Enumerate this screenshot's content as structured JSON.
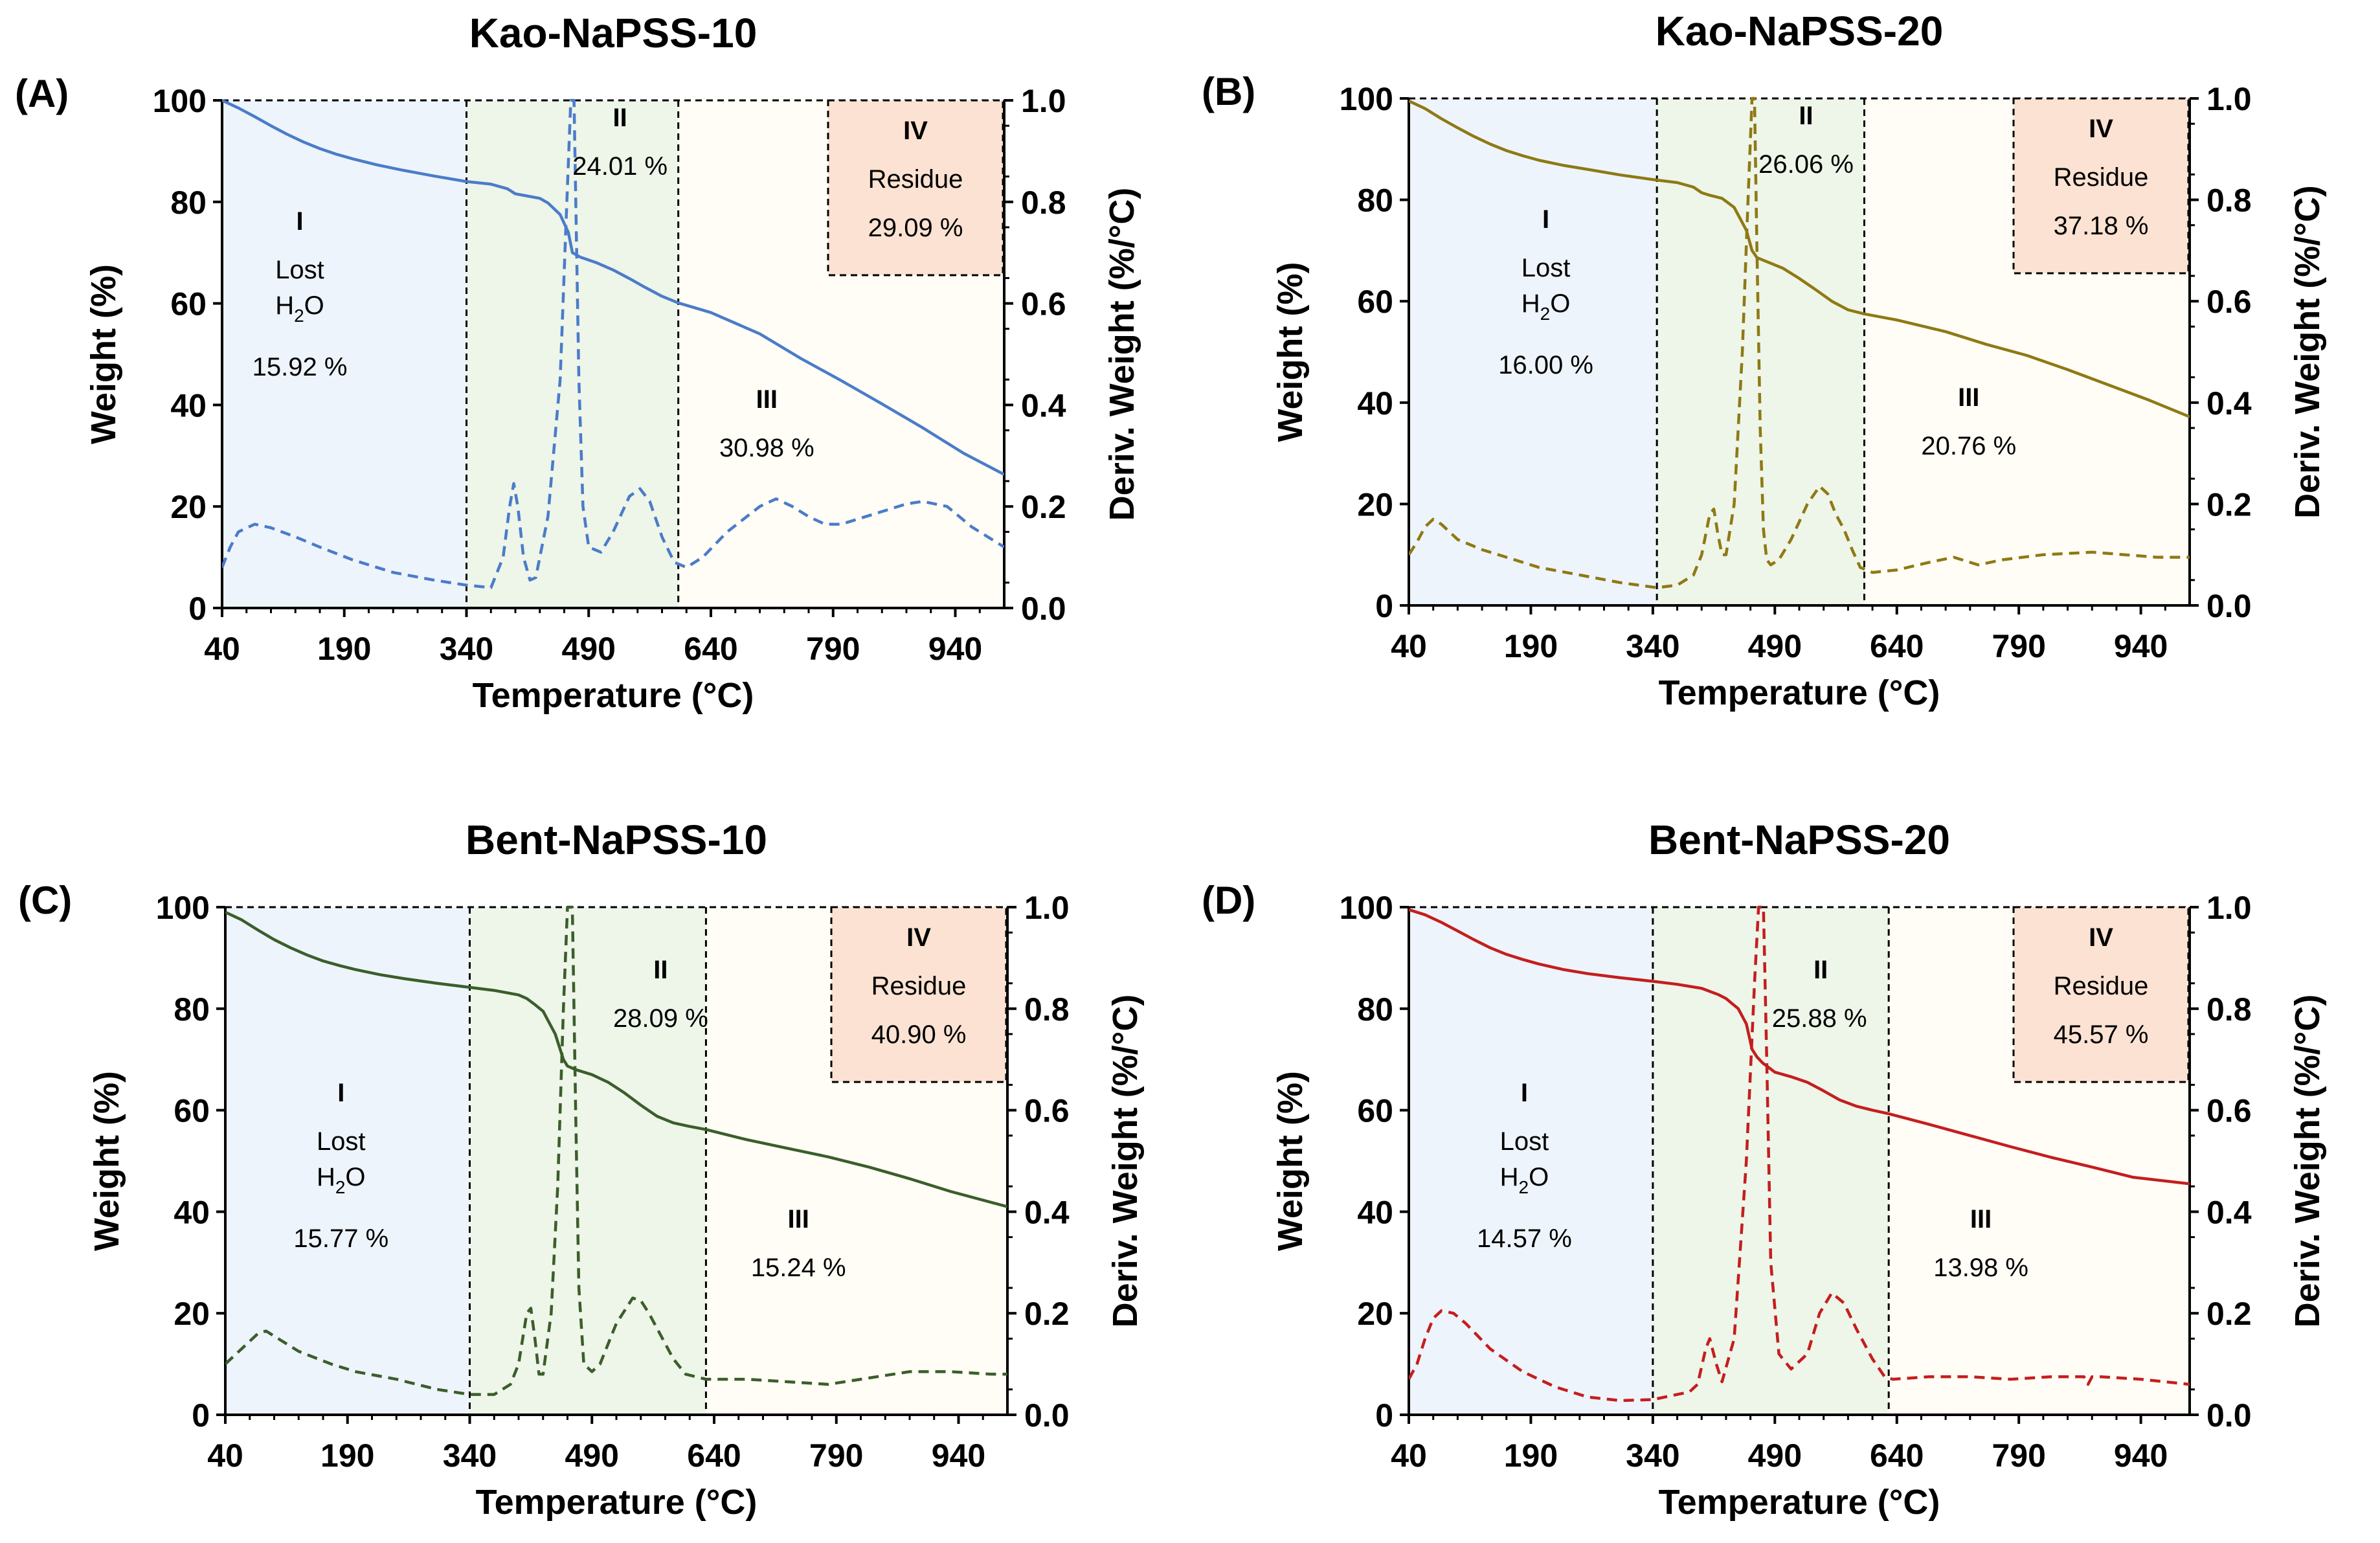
{
  "figure": {
    "x_axis_label": "Temperature (°C)",
    "y_left_label": "Weight (%)",
    "y_right_label": "Deriv. Weight (%/°C)",
    "x_ticks": [
      "40",
      "190",
      "340",
      "490",
      "640",
      "790",
      "940"
    ],
    "y_left_ticks": [
      "0",
      "20",
      "40",
      "60",
      "80",
      "100"
    ],
    "y_right_ticks": [
      "0.0",
      "0.2",
      "0.4",
      "0.6",
      "0.8",
      "1.0"
    ],
    "region_colors": {
      "I": "#eef4fb",
      "II": "#eef5e9",
      "III": "#fffdf6",
      "IV": "#fbe2d2"
    }
  },
  "chart_data": [
    {
      "panel": "(A)",
      "title": "Kao-NaPSS-10",
      "type": "line",
      "color": "#4a7cc9",
      "xlim": [
        40,
        1000
      ],
      "ylim": [
        0,
        100
      ],
      "y2lim": [
        0,
        1
      ],
      "boundaries": [
        340,
        600
      ],
      "regions": {
        "I": {
          "roman": "I",
          "line1": "Lost",
          "h2o": "H",
          "h2o_sub": "2",
          "h2o_tail": "O",
          "value": "15.92 %"
        },
        "II": {
          "roman": "II",
          "value": "24.01 %"
        },
        "III": {
          "roman": "III",
          "value": "30.98 %"
        },
        "IV": {
          "roman": "IV",
          "line1": "Residue",
          "value": "29.09 %"
        }
      },
      "series": [
        {
          "name": "Weight (%)",
          "axis": "left",
          "style": "solid",
          "x": [
            40,
            60,
            80,
            100,
            120,
            140,
            160,
            180,
            200,
            230,
            260,
            300,
            340,
            370,
            390,
            400,
            410,
            430,
            440,
            455,
            465,
            470,
            480,
            500,
            520,
            540,
            560,
            580,
            600,
            640,
            700,
            750,
            800,
            850,
            900,
            950,
            1000
          ],
          "y": [
            100,
            98.5,
            96.8,
            95,
            93.3,
            91.8,
            90.5,
            89.4,
            88.5,
            87.3,
            86.3,
            85.1,
            84,
            83.5,
            82.6,
            81.6,
            81.3,
            80.7,
            79.8,
            77.5,
            74,
            70,
            69.1,
            68,
            66.6,
            64.9,
            63.1,
            61.4,
            60.1,
            58.2,
            54,
            49.2,
            44.8,
            40.2,
            35.5,
            30.5,
            26.3
          ]
        },
        {
          "name": "Deriv. Weight (%/°C)",
          "axis": "right",
          "style": "dashed",
          "x": [
            40,
            50,
            60,
            80,
            100,
            130,
            160,
            200,
            250,
            300,
            340,
            370,
            385,
            393,
            398,
            403,
            410,
            418,
            425,
            440,
            455,
            462,
            468,
            472,
            478,
            483,
            490,
            505,
            520,
            540,
            553,
            565,
            580,
            595,
            610,
            630,
            660,
            700,
            720,
            740,
            760,
            780,
            800,
            850,
            880,
            900,
            930,
            960,
            1000
          ],
          "y": [
            0.08,
            0.12,
            0.15,
            0.165,
            0.158,
            0.14,
            0.12,
            0.095,
            0.07,
            0.055,
            0.045,
            0.04,
            0.1,
            0.2,
            0.245,
            0.2,
            0.1,
            0.055,
            0.06,
            0.18,
            0.45,
            0.75,
            1.0,
            1.0,
            0.45,
            0.2,
            0.12,
            0.11,
            0.15,
            0.22,
            0.235,
            0.21,
            0.14,
            0.09,
            0.08,
            0.1,
            0.15,
            0.2,
            0.215,
            0.2,
            0.18,
            0.165,
            0.165,
            0.19,
            0.205,
            0.21,
            0.2,
            0.16,
            0.12
          ]
        }
      ]
    },
    {
      "panel": "(B)",
      "title": "Kao-NaPSS-20",
      "type": "line",
      "color": "#8e7914",
      "xlim": [
        40,
        1000
      ],
      "ylim": [
        0,
        100
      ],
      "y2lim": [
        0,
        1
      ],
      "boundaries": [
        345,
        600
      ],
      "regions": {
        "I": {
          "roman": "I",
          "line1": "Lost",
          "h2o": "H",
          "h2o_sub": "2",
          "h2o_tail": "O",
          "value": "16.00 %"
        },
        "II": {
          "roman": "II",
          "value": "26.06 %"
        },
        "III": {
          "roman": "III",
          "value": "20.76 %"
        },
        "IV": {
          "roman": "IV",
          "line1": "Residue",
          "value": "37.18 %"
        }
      },
      "series": [
        {
          "name": "Weight (%)",
          "axis": "left",
          "style": "solid",
          "x": [
            40,
            60,
            80,
            100,
            120,
            140,
            160,
            180,
            200,
            230,
            260,
            300,
            340,
            370,
            390,
            400,
            410,
            425,
            440,
            455,
            462,
            468,
            480,
            500,
            520,
            540,
            560,
            580,
            600,
            640,
            700,
            750,
            800,
            850,
            900,
            950,
            1000
          ],
          "y": [
            99.5,
            98,
            96,
            94.2,
            92.5,
            91,
            89.7,
            88.7,
            87.8,
            86.8,
            86,
            84.9,
            84,
            83.4,
            82.5,
            81.4,
            80.9,
            80.3,
            78.5,
            74,
            70,
            68.6,
            67.8,
            66.5,
            64.5,
            62.3,
            60,
            58.3,
            57.5,
            56.3,
            54,
            51.5,
            49.3,
            46.5,
            43.5,
            40.5,
            37.2
          ]
        },
        {
          "name": "Deriv. Weight (%/°C)",
          "axis": "right",
          "style": "dashed",
          "x": [
            40,
            50,
            60,
            70,
            80,
            100,
            130,
            160,
            200,
            250,
            300,
            345,
            370,
            390,
            400,
            410,
            415,
            420,
            425,
            430,
            440,
            450,
            457,
            462,
            465,
            468,
            472,
            476,
            480,
            485,
            495,
            510,
            530,
            545,
            555,
            565,
            575,
            585,
            595,
            610,
            640,
            680,
            710,
            740,
            770,
            820,
            880,
            920,
            960,
            1000
          ],
          "y": [
            0.1,
            0.125,
            0.155,
            0.17,
            0.16,
            0.13,
            0.11,
            0.095,
            0.075,
            0.06,
            0.045,
            0.035,
            0.04,
            0.06,
            0.1,
            0.18,
            0.19,
            0.14,
            0.1,
            0.1,
            0.2,
            0.5,
            0.8,
            1.0,
            1.0,
            0.7,
            0.35,
            0.15,
            0.09,
            0.08,
            0.09,
            0.13,
            0.2,
            0.235,
            0.22,
            0.18,
            0.15,
            0.11,
            0.075,
            0.065,
            0.07,
            0.085,
            0.095,
            0.08,
            0.09,
            0.1,
            0.105,
            0.1,
            0.095,
            0.095
          ]
        }
      ]
    },
    {
      "panel": "(C)",
      "title": "Bent-NaPSS-10",
      "type": "line",
      "color": "#3b5e2b",
      "xlim": [
        40,
        1000
      ],
      "ylim": [
        0,
        100
      ],
      "y2lim": [
        0,
        1
      ],
      "boundaries": [
        340,
        630
      ],
      "regions": {
        "I": {
          "roman": "I",
          "line1": "Lost",
          "h2o": "H",
          "h2o_sub": "2",
          "h2o_tail": "O",
          "value": "15.77 %"
        },
        "II": {
          "roman": "II",
          "value": "28.09 %"
        },
        "III": {
          "roman": "III",
          "value": "15.24 %"
        },
        "IV": {
          "roman": "IV",
          "line1": "Residue",
          "value": "40.90 %"
        }
      },
      "series": [
        {
          "name": "Weight (%)",
          "axis": "left",
          "style": "solid",
          "x": [
            40,
            60,
            80,
            100,
            120,
            140,
            160,
            180,
            200,
            230,
            260,
            300,
            340,
            370,
            400,
            410,
            420,
            430,
            445,
            455,
            460,
            470,
            490,
            510,
            530,
            550,
            570,
            590,
            610,
            630,
            680,
            730,
            780,
            830,
            880,
            930,
            1000
          ],
          "y": [
            99,
            97.5,
            95.5,
            93.6,
            92,
            90.6,
            89.4,
            88.5,
            87.7,
            86.7,
            85.9,
            85,
            84.2,
            83.6,
            82.7,
            82,
            80.8,
            79.5,
            75,
            70,
            68.7,
            68,
            67,
            65.5,
            63.4,
            61,
            58.8,
            57.5,
            56.8,
            56.2,
            54.2,
            52.5,
            50.8,
            48.8,
            46.5,
            44,
            41
          ]
        },
        {
          "name": "Deriv. Weight (%/°C)",
          "axis": "right",
          "style": "dashed",
          "x": [
            40,
            60,
            80,
            90,
            100,
            130,
            170,
            200,
            250,
            300,
            340,
            370,
            390,
            400,
            410,
            415,
            420,
            425,
            430,
            440,
            448,
            455,
            460,
            466,
            470,
            474,
            480,
            490,
            500,
            520,
            540,
            550,
            560,
            575,
            590,
            605,
            630,
            680,
            730,
            780,
            820,
            880,
            930,
            980,
            1000
          ],
          "y": [
            0.1,
            0.13,
            0.16,
            0.165,
            0.155,
            0.125,
            0.1,
            0.085,
            0.07,
            0.05,
            0.04,
            0.04,
            0.06,
            0.1,
            0.2,
            0.21,
            0.15,
            0.08,
            0.08,
            0.2,
            0.45,
            0.8,
            1.0,
            1.0,
            0.6,
            0.25,
            0.1,
            0.085,
            0.1,
            0.18,
            0.23,
            0.225,
            0.2,
            0.155,
            0.11,
            0.08,
            0.07,
            0.07,
            0.065,
            0.06,
            0.07,
            0.085,
            0.085,
            0.08,
            0.08
          ]
        }
      ]
    },
    {
      "panel": "(D)",
      "title": "Bent-NaPSS-20",
      "type": "line",
      "color": "#c41e1e",
      "xlim": [
        40,
        1000
      ],
      "ylim": [
        0,
        100
      ],
      "y2lim": [
        0,
        1
      ],
      "boundaries": [
        340,
        630
      ],
      "regions": {
        "I": {
          "roman": "I",
          "line1": "Lost",
          "h2o": "H",
          "h2o_sub": "2",
          "h2o_tail": "O",
          "value": "14.57 %"
        },
        "II": {
          "roman": "II",
          "value": "25.88 %"
        },
        "III": {
          "roman": "III",
          "value": "13.98 %"
        },
        "IV": {
          "roman": "IV",
          "line1": "Residue",
          "value": "45.57 %"
        }
      },
      "series": [
        {
          "name": "Weight (%)",
          "axis": "left",
          "style": "solid",
          "x": [
            40,
            60,
            80,
            100,
            120,
            140,
            160,
            180,
            200,
            230,
            260,
            300,
            340,
            370,
            400,
            420,
            430,
            445,
            455,
            462,
            468,
            475,
            490,
            510,
            530,
            550,
            570,
            590,
            610,
            630,
            680,
            730,
            780,
            830,
            880,
            930,
            1000
          ],
          "y": [
            99.5,
            98.5,
            97,
            95.3,
            93.6,
            92,
            90.7,
            89.7,
            88.8,
            87.7,
            86.9,
            86.1,
            85.4,
            84.8,
            84,
            82.8,
            82,
            80,
            77,
            72,
            70.5,
            69.3,
            67.5,
            66.6,
            65.5,
            63.8,
            62,
            60.8,
            60,
            59.3,
            57.2,
            55,
            52.8,
            50.7,
            48.8,
            46.8,
            45.5
          ]
        },
        {
          "name": "Deriv. Weight (%/°C)",
          "axis": "right",
          "style": "dashed",
          "x": [
            40,
            50,
            60,
            70,
            80,
            95,
            110,
            140,
            180,
            220,
            260,
            300,
            340,
            370,
            385,
            395,
            405,
            410,
            418,
            425,
            440,
            455,
            465,
            470,
            476,
            480,
            485,
            495,
            510,
            530,
            545,
            560,
            575,
            590,
            610,
            625,
            635,
            680,
            730,
            780,
            830,
            870,
            875,
            880,
            890,
            940,
            1000
          ],
          "y": [
            0.07,
            0.1,
            0.15,
            0.19,
            0.205,
            0.2,
            0.18,
            0.13,
            0.085,
            0.055,
            0.035,
            0.028,
            0.03,
            0.04,
            0.045,
            0.06,
            0.13,
            0.15,
            0.1,
            0.065,
            0.15,
            0.5,
            0.85,
            1.0,
            1.0,
            0.7,
            0.3,
            0.12,
            0.09,
            0.12,
            0.2,
            0.24,
            0.22,
            0.17,
            0.11,
            0.075,
            0.07,
            0.075,
            0.075,
            0.07,
            0.075,
            0.075,
            0.06,
            0.075,
            0.075,
            0.07,
            0.06
          ]
        }
      ]
    }
  ]
}
